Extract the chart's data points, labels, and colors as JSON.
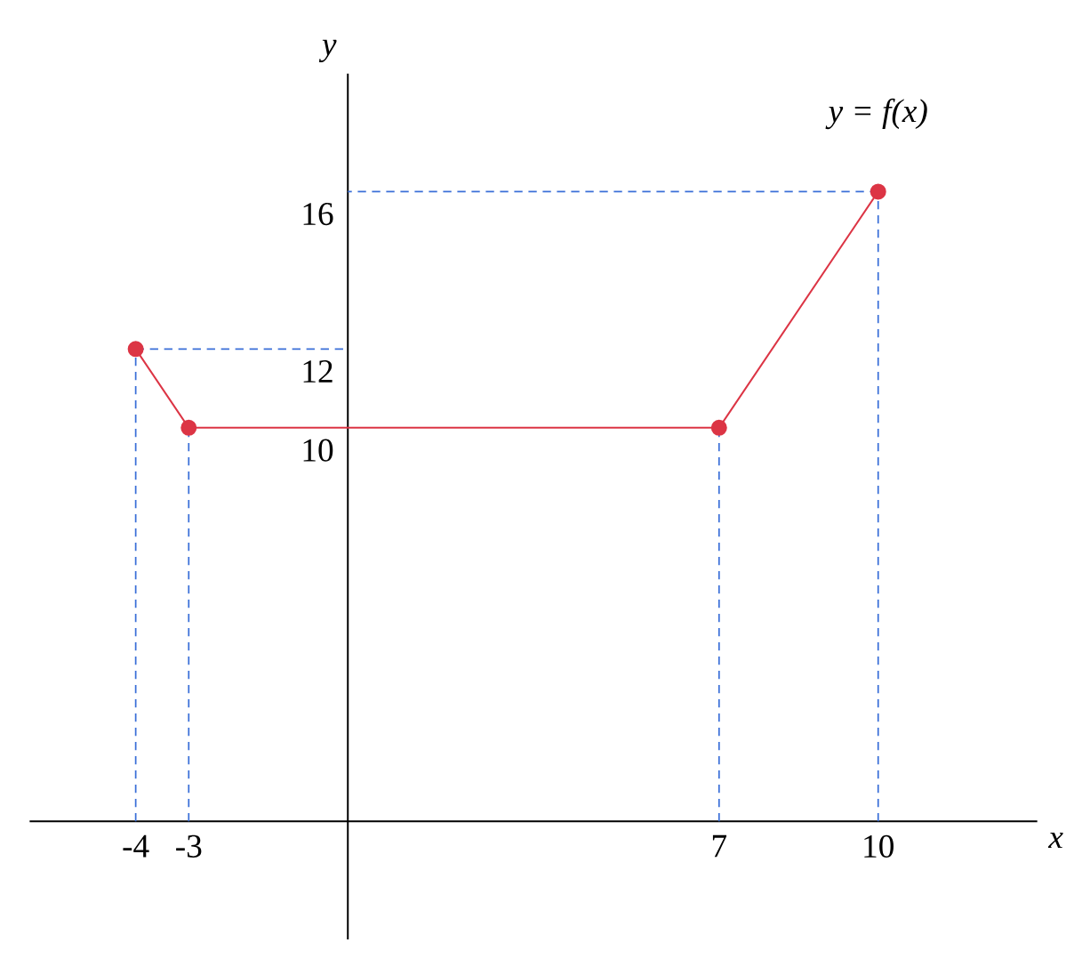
{
  "chart_data": {
    "type": "line",
    "xlabel": "x",
    "ylabel": "y",
    "x": [
      -4,
      -3,
      7,
      10
    ],
    "series": [
      {
        "name": "y = f(x)",
        "color": "#dc3545",
        "values": [
          12,
          10,
          10,
          16
        ]
      }
    ],
    "xlim": [
      -6,
      13
    ],
    "ylim": [
      -3,
      19
    ],
    "xticks": [
      -4,
      -3,
      7,
      10
    ],
    "yticks": [
      10,
      12,
      16
    ],
    "marker": "circle",
    "line_style": "solid",
    "grid": false,
    "ref_lines": [
      {
        "axis": "x",
        "value": -4,
        "color": "#3a6fd8",
        "line_style": "dashed"
      },
      {
        "axis": "x",
        "value": -3,
        "color": "#3a6fd8",
        "line_style": "dashed"
      },
      {
        "axis": "x",
        "value": 7,
        "color": "#3a6fd8",
        "line_style": "dashed"
      },
      {
        "axis": "x",
        "value": 10,
        "color": "#3a6fd8",
        "line_style": "dashed"
      },
      {
        "axis": "y",
        "value": 12,
        "color": "#3a6fd8",
        "line_style": "dashed"
      },
      {
        "axis": "y",
        "value": 16,
        "color": "#3a6fd8",
        "line_style": "dashed"
      }
    ]
  }
}
